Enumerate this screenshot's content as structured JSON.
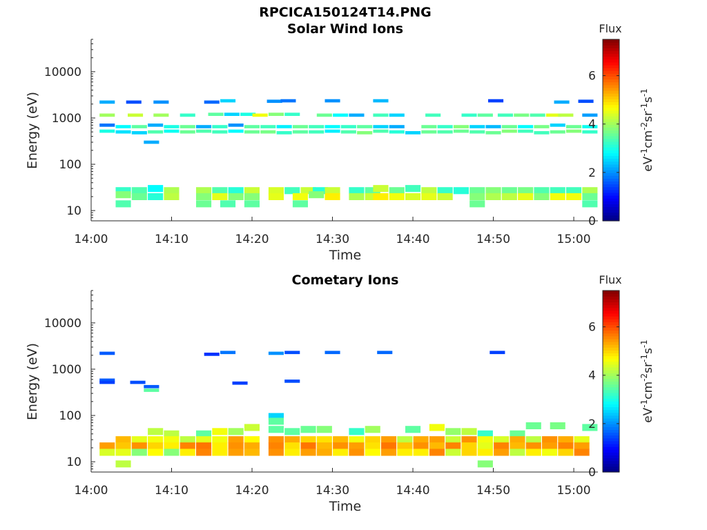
{
  "figure": {
    "file_title": "RPCICA150124T14.PNG"
  },
  "colorbar": {
    "title": "Flux",
    "ticks": [
      "0",
      "2",
      "4",
      "6"
    ],
    "range": [
      0,
      7.5
    ],
    "colormap": "jet"
  },
  "chart_data": [
    {
      "type": "heatmap",
      "title": "Solar Wind Ions",
      "xlabel": "Time",
      "ylabel": "Energy (eV)",
      "x_range_minutes": [
        0,
        63
      ],
      "x_ticks": [
        "14:00",
        "14:10",
        "14:20",
        "14:30",
        "14:40",
        "14:50",
        "15:00"
      ],
      "y_scale": "log",
      "y_range": [
        6,
        50000
      ],
      "y_ticks": [
        "10",
        "100",
        "1000",
        "10000"
      ],
      "cells": [
        [
          2,
          2200,
          2.2
        ],
        [
          5.3,
          2200,
          1.5
        ],
        [
          8.7,
          2200,
          2
        ],
        [
          15,
          2200,
          1.7
        ],
        [
          17,
          2350,
          2.5
        ],
        [
          22.8,
          2300,
          2
        ],
        [
          24.5,
          2350,
          1.8
        ],
        [
          30,
          2350,
          2
        ],
        [
          36,
          2350,
          2.3
        ],
        [
          50.3,
          2350,
          1.4
        ],
        [
          58.5,
          2200,
          2.2
        ],
        [
          61.5,
          2300,
          1.5
        ],
        [
          2,
          1150,
          4
        ],
        [
          5.5,
          1150,
          4.3
        ],
        [
          8.7,
          1150,
          4
        ],
        [
          12,
          1150,
          3.2
        ],
        [
          15.5,
          1200,
          3.5
        ],
        [
          17.5,
          1200,
          2.5
        ],
        [
          19.5,
          1200,
          3
        ],
        [
          21,
          1150,
          4.6
        ],
        [
          23,
          1200,
          3.8
        ],
        [
          25,
          1200,
          3.2
        ],
        [
          29,
          1150,
          3.6
        ],
        [
          31,
          1150,
          2.8
        ],
        [
          33,
          1150,
          2.2
        ],
        [
          36,
          1150,
          3.3
        ],
        [
          38,
          1150,
          2.5
        ],
        [
          42.5,
          1150,
          3.3
        ],
        [
          47,
          1150,
          3.2
        ],
        [
          49,
          1150,
          3.5
        ],
        [
          51.5,
          1150,
          3.3
        ],
        [
          53.5,
          1150,
          3.7
        ],
        [
          55.5,
          1150,
          3.4
        ],
        [
          57.5,
          1150,
          4.5
        ],
        [
          59,
          1150,
          4.2
        ],
        [
          62,
          1150,
          2.1
        ],
        [
          2,
          700,
          1.8
        ],
        [
          4,
          650,
          2.8
        ],
        [
          6,
          650,
          3.5
        ],
        [
          8,
          700,
          2.2
        ],
        [
          10,
          650,
          3
        ],
        [
          12,
          650,
          3.6
        ],
        [
          14,
          650,
          2.2
        ],
        [
          16,
          650,
          3.2
        ],
        [
          18,
          700,
          2
        ],
        [
          20,
          650,
          3.5
        ],
        [
          22,
          650,
          3.3
        ],
        [
          24,
          650,
          2.7
        ],
        [
          26,
          650,
          3.6
        ],
        [
          28,
          650,
          3.3
        ],
        [
          30,
          650,
          2.8
        ],
        [
          32,
          650,
          3.2
        ],
        [
          34,
          650,
          3.5
        ],
        [
          36,
          650,
          2.5
        ],
        [
          38,
          650,
          2.2
        ],
        [
          42,
          650,
          3.6
        ],
        [
          44,
          650,
          3.2
        ],
        [
          46,
          650,
          3.8
        ],
        [
          48,
          650,
          2.5
        ],
        [
          50,
          650,
          2.3
        ],
        [
          52,
          650,
          3.6
        ],
        [
          54,
          650,
          2.8
        ],
        [
          56,
          650,
          3.7
        ],
        [
          58,
          700,
          2.5
        ],
        [
          60,
          650,
          3.6
        ],
        [
          62,
          650,
          2.9
        ],
        [
          2,
          520,
          3
        ],
        [
          4,
          500,
          2.6
        ],
        [
          6,
          480,
          2.5
        ],
        [
          8,
          500,
          3.4
        ],
        [
          10,
          520,
          2.9
        ],
        [
          12,
          500,
          3.6
        ],
        [
          14,
          520,
          3.4
        ],
        [
          16,
          500,
          3.3
        ],
        [
          18,
          520,
          2.8
        ],
        [
          20,
          500,
          3.6
        ],
        [
          22,
          500,
          3.7
        ],
        [
          24,
          480,
          3.2
        ],
        [
          26,
          500,
          3.5
        ],
        [
          28,
          500,
          3.3
        ],
        [
          30,
          520,
          2.7
        ],
        [
          32,
          500,
          3.4
        ],
        [
          34,
          480,
          3.8
        ],
        [
          36,
          520,
          3.4
        ],
        [
          38,
          500,
          3.1
        ],
        [
          40,
          480,
          2.5
        ],
        [
          42,
          500,
          3.6
        ],
        [
          44,
          500,
          3.4
        ],
        [
          46,
          520,
          3.6
        ],
        [
          48,
          500,
          3.4
        ],
        [
          50,
          480,
          3.6
        ],
        [
          52,
          520,
          3.8
        ],
        [
          54,
          520,
          3.3
        ],
        [
          56,
          480,
          3.3
        ],
        [
          58,
          500,
          3.6
        ],
        [
          60,
          520,
          3.8
        ],
        [
          62,
          500,
          3.2
        ],
        [
          7.5,
          300,
          2.2
        ],
        [
          4,
          27,
          3.2
        ],
        [
          6,
          27,
          3.4
        ],
        [
          8,
          30,
          2.8
        ],
        [
          10,
          27,
          4.1
        ],
        [
          14,
          27,
          4.1
        ],
        [
          16,
          27,
          3.4
        ],
        [
          18,
          27,
          3.1
        ],
        [
          20,
          27,
          4.3
        ],
        [
          23,
          27,
          4.4
        ],
        [
          25,
          27,
          3.3
        ],
        [
          27,
          27,
          4.3
        ],
        [
          28.5,
          27,
          3.1
        ],
        [
          30,
          27,
          4.3
        ],
        [
          33,
          27,
          3.2
        ],
        [
          35,
          27,
          3.5
        ],
        [
          36,
          30,
          4.3
        ],
        [
          38,
          27,
          3.6
        ],
        [
          40,
          30,
          3.3
        ],
        [
          42,
          27,
          4.2
        ],
        [
          44,
          27,
          3.2
        ],
        [
          46,
          27,
          3.1
        ],
        [
          48,
          27,
          3.6
        ],
        [
          50,
          27,
          3.8
        ],
        [
          52,
          27,
          3.6
        ],
        [
          54,
          27,
          3.7
        ],
        [
          56,
          27,
          3.4
        ],
        [
          58,
          27,
          3.3
        ],
        [
          60,
          27,
          3.3
        ],
        [
          62,
          27,
          4.1
        ],
        [
          4,
          22,
          3.8
        ],
        [
          6,
          20,
          3.6
        ],
        [
          8,
          20,
          3.1
        ],
        [
          10,
          20,
          4.2
        ],
        [
          14,
          20,
          3.8
        ],
        [
          16,
          20,
          4.5
        ],
        [
          18,
          20,
          3.8
        ],
        [
          20,
          20,
          3.8
        ],
        [
          23,
          20,
          4.5
        ],
        [
          26,
          20,
          4.6
        ],
        [
          28,
          22,
          3.8
        ],
        [
          30,
          20,
          4.8
        ],
        [
          33,
          20,
          4.1
        ],
        [
          35,
          20,
          4.3
        ],
        [
          36,
          20,
          4.8
        ],
        [
          38,
          20,
          4.6
        ],
        [
          40,
          20,
          4.4
        ],
        [
          42,
          20,
          4.5
        ],
        [
          44,
          20,
          4.3
        ],
        [
          48,
          20,
          3.8
        ],
        [
          50,
          20,
          4.1
        ],
        [
          52,
          20,
          4.2
        ],
        [
          54,
          20,
          4.5
        ],
        [
          56,
          20,
          3.8
        ],
        [
          58,
          20,
          4.6
        ],
        [
          60,
          20,
          4.6
        ],
        [
          62,
          20,
          3.6
        ],
        [
          4,
          14,
          3.4
        ],
        [
          14,
          14,
          3.6
        ],
        [
          17,
          14,
          3.4
        ],
        [
          20,
          14,
          3.5
        ],
        [
          26,
          14,
          3.5
        ],
        [
          48,
          14,
          3.6
        ],
        [
          62,
          14,
          3.4
        ]
      ]
    },
    {
      "type": "heatmap",
      "title": "Cometary Ions",
      "xlabel": "Time",
      "ylabel": "Energy (eV)",
      "x_range_minutes": [
        0,
        63
      ],
      "x_ticks": [
        "14:00",
        "14:10",
        "14:20",
        "14:30",
        "14:40",
        "14:50",
        "15:00"
      ],
      "y_scale": "log",
      "y_range": [
        6,
        50000
      ],
      "y_ticks": [
        "10",
        "100",
        "1000",
        "10000"
      ],
      "cells": [
        [
          2,
          2200,
          1.6
        ],
        [
          15,
          2100,
          1.3
        ],
        [
          17,
          2300,
          1.8
        ],
        [
          23,
          2200,
          2
        ],
        [
          25,
          2300,
          1.5
        ],
        [
          30,
          2300,
          1.7
        ],
        [
          36.5,
          2300,
          1.7
        ],
        [
          50.5,
          2300,
          1.4
        ],
        [
          2,
          580,
          1.6
        ],
        [
          2,
          520,
          1.4
        ],
        [
          5.8,
          520,
          1.5
        ],
        [
          7.5,
          420,
          1.6
        ],
        [
          7.5,
          350,
          3.5
        ],
        [
          18.5,
          500,
          1.4
        ],
        [
          25,
          550,
          1.5
        ],
        [
          23,
          95,
          2.5
        ],
        [
          23,
          75,
          3.5
        ],
        [
          8,
          45,
          4.2
        ],
        [
          10,
          40,
          4.2
        ],
        [
          14,
          40,
          3.5
        ],
        [
          16,
          45,
          4.6
        ],
        [
          18,
          45,
          4
        ],
        [
          20,
          55,
          4.3
        ],
        [
          23,
          50,
          3.5
        ],
        [
          25,
          45,
          3.5
        ],
        [
          27,
          50,
          3.6
        ],
        [
          29,
          50,
          3.8
        ],
        [
          33,
          45,
          3.2
        ],
        [
          35,
          50,
          4
        ],
        [
          40,
          50,
          3.5
        ],
        [
          43,
          55,
          4.6
        ],
        [
          45,
          45,
          3.9
        ],
        [
          47,
          45,
          4.2
        ],
        [
          49,
          40,
          3.2
        ],
        [
          53,
          40,
          3.6
        ],
        [
          55,
          60,
          3.6
        ],
        [
          58,
          60,
          3.7
        ],
        [
          62,
          55,
          3.5
        ],
        [
          4,
          30,
          5.2
        ],
        [
          6,
          30,
          4.5
        ],
        [
          8,
          30,
          4.6
        ],
        [
          10,
          30,
          4.6
        ],
        [
          12,
          30,
          4.2
        ],
        [
          14,
          30,
          4.5
        ],
        [
          16,
          30,
          4.6
        ],
        [
          18,
          30,
          5.4
        ],
        [
          20,
          30,
          4.7
        ],
        [
          23,
          30,
          5.5
        ],
        [
          25,
          30,
          5.3
        ],
        [
          27,
          30,
          5
        ],
        [
          29,
          30,
          4.9
        ],
        [
          31,
          30,
          5.2
        ],
        [
          33,
          30,
          4.6
        ],
        [
          35,
          30,
          5
        ],
        [
          37,
          30,
          5.4
        ],
        [
          39,
          30,
          4.2
        ],
        [
          41,
          30,
          5.3
        ],
        [
          43,
          30,
          5.4
        ],
        [
          45,
          30,
          4.3
        ],
        [
          47,
          30,
          5.5
        ],
        [
          49,
          30,
          4.6
        ],
        [
          51,
          30,
          4.4
        ],
        [
          53,
          30,
          5.3
        ],
        [
          55,
          30,
          4.2
        ],
        [
          57,
          30,
          5.5
        ],
        [
          59,
          30,
          5.3
        ],
        [
          61,
          30,
          4.5
        ],
        [
          2,
          22,
          5.4
        ],
        [
          4,
          22,
          5.1
        ],
        [
          6,
          22,
          5.5
        ],
        [
          8,
          22,
          5
        ],
        [
          10,
          22,
          4.8
        ],
        [
          12,
          22,
          5.6
        ],
        [
          14,
          22,
          5.7
        ],
        [
          16,
          22,
          4.8
        ],
        [
          18,
          22,
          5.5
        ],
        [
          20,
          22,
          5.3
        ],
        [
          23,
          22,
          5.6
        ],
        [
          25,
          22,
          4.9
        ],
        [
          27,
          22,
          5.7
        ],
        [
          29,
          22,
          5.2
        ],
        [
          31,
          22,
          5.5
        ],
        [
          33,
          22,
          5.4
        ],
        [
          35,
          22,
          4.9
        ],
        [
          37,
          22,
          5.7
        ],
        [
          39,
          22,
          5.1
        ],
        [
          41,
          22,
          5.5
        ],
        [
          43,
          22,
          5.2
        ],
        [
          45,
          22,
          5.6
        ],
        [
          47,
          22,
          5
        ],
        [
          49,
          22,
          4.5
        ],
        [
          51,
          22,
          5.6
        ],
        [
          53,
          22,
          5.2
        ],
        [
          55,
          22,
          5.5
        ],
        [
          57,
          22,
          5.4
        ],
        [
          59,
          22,
          5.6
        ],
        [
          61,
          22,
          5.4
        ],
        [
          2,
          16,
          4.4
        ],
        [
          4,
          16,
          4.5
        ],
        [
          6,
          16,
          3.8
        ],
        [
          8,
          16,
          4.7
        ],
        [
          10,
          16,
          3.8
        ],
        [
          12,
          16,
          4.8
        ],
        [
          14,
          16,
          5.6
        ],
        [
          16,
          16,
          4.8
        ],
        [
          18,
          16,
          5.4
        ],
        [
          20,
          16,
          5.2
        ],
        [
          23,
          16,
          5.5
        ],
        [
          25,
          16,
          4.8
        ],
        [
          27,
          16,
          5.4
        ],
        [
          29,
          16,
          5.3
        ],
        [
          31,
          16,
          4.8
        ],
        [
          33,
          16,
          5.5
        ],
        [
          35,
          16,
          4.7
        ],
        [
          37,
          16,
          5.4
        ],
        [
          39,
          16,
          4.8
        ],
        [
          41,
          16,
          4.8
        ],
        [
          43,
          16,
          5.6
        ],
        [
          45,
          16,
          4.3
        ],
        [
          47,
          16,
          5
        ],
        [
          49,
          16,
          4.8
        ],
        [
          51,
          16,
          5.4
        ],
        [
          53,
          16,
          4.2
        ],
        [
          55,
          16,
          4.8
        ],
        [
          57,
          16,
          4.6
        ],
        [
          59,
          16,
          5
        ],
        [
          61,
          16,
          5.6
        ],
        [
          4,
          9,
          4.2
        ],
        [
          49,
          9,
          3.8
        ]
      ]
    }
  ]
}
